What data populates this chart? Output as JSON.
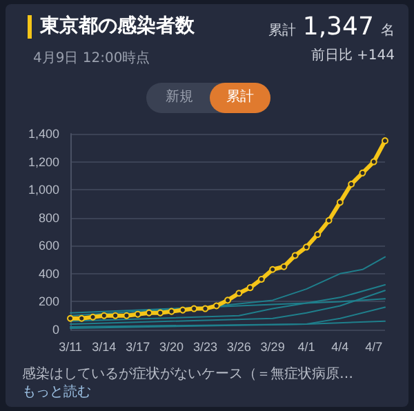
{
  "chart_data": {
    "type": "line",
    "title": "東京都の感染者数",
    "subtitle": "4月9日 12:00時点",
    "annotations": [
      "累計",
      "1,347",
      "名",
      "前日比 +144",
      "新規",
      "累計",
      "感染はしているが症状がないケース（＝無症状病原…",
      "もっと読む"
    ],
    "x": [
      "--03-11",
      "--03-12",
      "--03-13",
      "--03-14",
      "--03-15",
      "--03-16",
      "--03-17",
      "--03-18",
      "--03-19",
      "--03-20",
      "--03-21",
      "--03-22",
      "--03-23",
      "--03-24",
      "--03-25",
      "--03-26",
      "--03-27",
      "--03-28",
      "--03-29",
      "--03-30",
      "--03-31",
      "--04-01",
      "--04-02",
      "--04-03",
      "--04-04",
      "--04-05",
      "--04-06",
      "--04-07",
      "--04-08"
    ],
    "series": [
      {
        "color": "#1f7f8c",
        "x": [
          "--03-11",
          "--03-23",
          "--03-29",
          "--04-01",
          "--04-04",
          "--04-06",
          "--04-08"
        ],
        "values": [
          120,
          160,
          210,
          290,
          400,
          430,
          520
        ]
      },
      {
        "color": "#1f7f8c",
        "x": [
          "--03-11",
          "--03-26",
          "--03-29",
          "--04-01",
          "--04-04",
          "--04-08"
        ],
        "values": [
          60,
          100,
          150,
          190,
          230,
          320
        ]
      },
      {
        "color": "#1f7f8c",
        "x": [
          "--03-11",
          "--03-29",
          "--04-01",
          "--04-04",
          "--04-08"
        ],
        "values": [
          40,
          80,
          120,
          170,
          280
        ]
      },
      {
        "color": "#1f7f8c",
        "x": [
          "--03-11",
          "--03-23",
          "--03-29",
          "--04-04",
          "--04-08"
        ],
        "values": [
          100,
          160,
          180,
          200,
          220
        ]
      },
      {
        "color": "#1f7f8c",
        "x": [
          "--03-11",
          "--04-01",
          "--04-04",
          "--04-08"
        ],
        "values": [
          10,
          40,
          80,
          160
        ]
      },
      {
        "color": "#1f7f8c",
        "x": [
          "--03-11",
          "--04-01",
          "--04-08"
        ],
        "values": [
          20,
          40,
          60
        ]
      },
      {
        "color": "#f5c518",
        "marker": "circle",
        "values": [
          80,
          80,
          90,
          100,
          100,
          100,
          110,
          120,
          120,
          130,
          140,
          150,
          150,
          170,
          210,
          260,
          300,
          360,
          430,
          450,
          530,
          590,
          680,
          780,
          910,
          1040,
          1120,
          1200,
          1350
        ]
      }
    ],
    "xlim": [
      "--03-11",
      "--04-08"
    ],
    "xticks": [
      {
        "value": "--03-11",
        "label": "3/11"
      },
      {
        "value": "--03-14",
        "label": "3/14"
      },
      {
        "value": "--03-17",
        "label": "3/17"
      },
      {
        "value": "--03-20",
        "label": "3/20"
      },
      {
        "value": "--03-23",
        "label": "3/23"
      },
      {
        "value": "--03-26",
        "label": "3/26"
      },
      {
        "value": "--03-29",
        "label": "3/29"
      },
      {
        "value": "--04-01",
        "label": "4/1"
      },
      {
        "value": "--04-04",
        "label": "4/4"
      },
      {
        "value": "--04-07",
        "label": "4/7"
      }
    ],
    "ylim": [
      0,
      1400
    ],
    "yticks": [
      {
        "value": 0,
        "label": "0"
      },
      {
        "value": 200,
        "label": "200"
      },
      {
        "value": 400,
        "label": "400"
      },
      {
        "value": 600,
        "label": "600"
      },
      {
        "value": 800,
        "label": "800"
      },
      {
        "value": 1000,
        "label": "1,000"
      },
      {
        "value": 1200,
        "label": "1,200"
      },
      {
        "value": 1400,
        "label": "1,400"
      }
    ],
    "grid": "y"
  }
}
